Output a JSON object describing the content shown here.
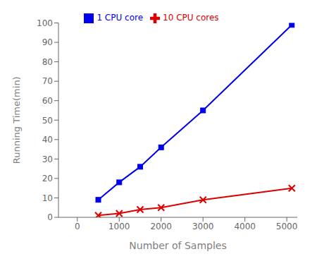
{
  "chart_data": {
    "type": "line",
    "xlabel": "Number of Samples",
    "ylabel": "Running Time(min)",
    "x": [
      500,
      1000,
      1500,
      2000,
      3000,
      5120
    ],
    "series": [
      {
        "name": "1 CPU core",
        "color": "#0000EE",
        "marker": "square",
        "values": [
          9,
          18,
          26,
          36,
          55,
          99
        ]
      },
      {
        "name": "10 CPU cores",
        "color": "#DD0000",
        "marker": "x",
        "values": [
          1,
          2,
          4,
          5,
          9,
          15
        ]
      }
    ],
    "xlim": [
      -450,
      5250
    ],
    "xticks": [
      0,
      1000,
      2000,
      3000,
      4000,
      5000
    ],
    "ylim": [
      0,
      100
    ],
    "yticks": [
      0,
      10,
      20,
      30,
      40,
      50,
      60,
      70,
      80,
      90,
      100
    ],
    "grid": false,
    "legend": "top"
  }
}
